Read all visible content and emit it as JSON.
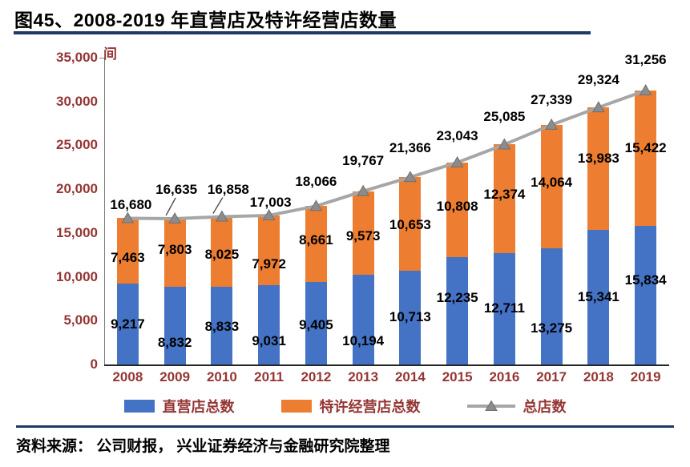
{
  "figure": {
    "title": "图45、2008-2019 年直营店及特许经营店数量",
    "source": "资料来源： 公司财报， 兴业证券经济与金融研究院整理"
  },
  "chart_data": {
    "type": "bar",
    "subtype": "stacked-bars-with-total-line",
    "title": "2008-2019 年直营店及特许经营店数量",
    "unit_label": "间",
    "categories": [
      "2008",
      "2009",
      "2010",
      "2011",
      "2012",
      "2013",
      "2014",
      "2015",
      "2016",
      "2017",
      "2018",
      "2019"
    ],
    "series": [
      {
        "name": "直营店总数",
        "type": "bar",
        "color": "#4472C4",
        "values": [
          9217,
          8832,
          8833,
          9031,
          9405,
          10194,
          10713,
          12235,
          12711,
          13275,
          15341,
          15834
        ]
      },
      {
        "name": "特许经营店总数",
        "type": "bar",
        "color": "#ED7D31",
        "values": [
          7463,
          7803,
          8025,
          7972,
          8661,
          9573,
          10653,
          10808,
          12374,
          14064,
          13983,
          15422
        ]
      },
      {
        "name": "总店数",
        "type": "line",
        "color": "#A6A6A6",
        "marker": "triangle",
        "marker_color": "#8C8C8C",
        "values": [
          16680,
          16635,
          16858,
          17003,
          18066,
          19767,
          21366,
          23043,
          25085,
          27339,
          29324,
          31256
        ]
      }
    ],
    "ylim": [
      0,
      35000
    ],
    "ytick_interval": 5000,
    "grid": false,
    "legend_position": "bottom",
    "stacking": "直营店总数 + 特许经营店总数 = 总店数"
  },
  "colors": {
    "bar_direct": "#4472C4",
    "bar_franchise": "#ED7D31",
    "total_line": "#A6A6A6",
    "axis_text": "#943634",
    "data_label_text": "#000000",
    "rule_navy": "#1F3864"
  }
}
